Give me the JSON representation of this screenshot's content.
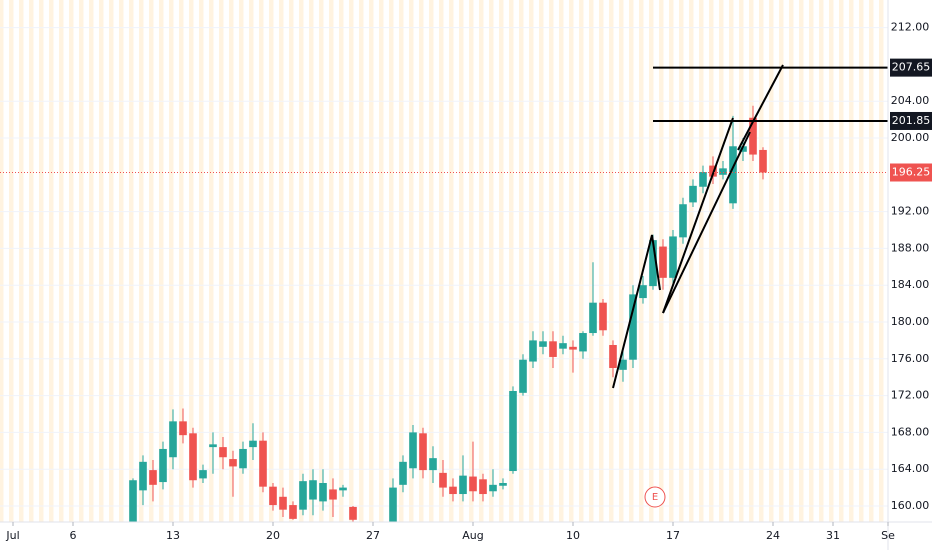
{
  "chart_data": {
    "type": "candlestick",
    "up_color": "#26a69a",
    "down_color": "#ef5350",
    "xlim": [
      -13.3,
      75.5
    ],
    "ylim": [
      158.26,
      215
    ],
    "xticks": [
      {
        "value": -12,
        "label": "Jul"
      },
      {
        "value": -6,
        "label": "6"
      },
      {
        "value": 4,
        "label": "13"
      },
      {
        "value": 14,
        "label": "20"
      },
      {
        "value": 24,
        "label": "27"
      },
      {
        "value": 34,
        "label": "Aug"
      },
      {
        "value": 44,
        "label": "10"
      },
      {
        "value": 54,
        "label": "17"
      },
      {
        "value": 64,
        "label": "24"
      },
      {
        "value": 70,
        "label": "31"
      },
      {
        "value": 75.5,
        "label": "Se"
      }
    ],
    "yticks": [
      {
        "value": 160,
        "label": "160.00"
      },
      {
        "value": 164,
        "label": "164.00"
      },
      {
        "value": 168,
        "label": "168.00"
      },
      {
        "value": 172,
        "label": "172.00"
      },
      {
        "value": 176,
        "label": "176.00"
      },
      {
        "value": 180,
        "label": "180.00"
      },
      {
        "value": 184,
        "label": "184.00"
      },
      {
        "value": 188,
        "label": "188.00"
      },
      {
        "value": 192,
        "label": "192.00"
      },
      {
        "value": 200,
        "label": "200.00"
      },
      {
        "value": 204,
        "label": "204.00"
      },
      {
        "value": 212,
        "label": "212.00"
      }
    ],
    "x": [
      0,
      1,
      2,
      3,
      4,
      5,
      6,
      7,
      8,
      9,
      10,
      11,
      12,
      13,
      14,
      15,
      16,
      17,
      18,
      19,
      20,
      21,
      22,
      26,
      27,
      28,
      29,
      30,
      31,
      32,
      33,
      34,
      35,
      36,
      37,
      38,
      39,
      40,
      41,
      42,
      43,
      44,
      45,
      46,
      47,
      48,
      49,
      50,
      51,
      52,
      53,
      54,
      55,
      56,
      57,
      58,
      59,
      60,
      61,
      62,
      63
    ],
    "open": [
      158.0,
      161.7,
      163.9,
      162.6,
      165.3,
      169.2,
      167.9,
      163.0,
      166.4,
      166.4,
      165.1,
      164.1,
      166.4,
      167.1,
      162.1,
      161.0,
      160.1,
      159.6,
      160.7,
      160.5,
      161.8,
      161.7,
      159.9,
      158.3,
      162.3,
      164.1,
      167.9,
      163.9,
      163.6,
      162.1,
      161.3,
      163.2,
      162.9,
      161.6,
      162.2,
      163.8,
      172.3,
      175.7,
      177.3,
      177.9,
      177.1,
      177.3,
      176.8,
      178.8,
      182.1,
      177.5,
      174.8,
      175.9,
      182.6,
      183.9,
      188.2,
      184.8,
      189.2,
      193.0,
      194.7,
      197.0,
      196.0,
      192.9,
      198.5,
      202.2,
      198.7
    ],
    "high": [
      163.0,
      165.5,
      165.0,
      167.0,
      170.5,
      170.6,
      168.5,
      164.5,
      168.0,
      167.5,
      166.0,
      167.0,
      169.0,
      168.0,
      162.5,
      162.0,
      160.5,
      163.5,
      164.0,
      164.0,
      163.0,
      162.3,
      160.0,
      163.0,
      165.5,
      168.8,
      168.5,
      166.5,
      165.0,
      163.0,
      165.5,
      167.0,
      163.5,
      164.0,
      163.0,
      173.0,
      176.5,
      179.0,
      179.0,
      179.0,
      178.5,
      178.0,
      179.0,
      186.5,
      182.5,
      178.0,
      177.0,
      184.0,
      185.0,
      189.5,
      189.0,
      190.0,
      193.5,
      195.5,
      197.0,
      198.0,
      197.5,
      202.4,
      200.0,
      203.5,
      199.0
    ],
    "low": [
      157.0,
      160.1,
      160.5,
      161.8,
      164.0,
      166.8,
      162.0,
      162.5,
      163.5,
      164.0,
      161.0,
      163.5,
      165.0,
      161.5,
      159.5,
      158.8,
      158.5,
      159.0,
      159.0,
      159.5,
      158.8,
      161.0,
      158.0,
      157.0,
      161.5,
      163.0,
      163.0,
      162.5,
      161.0,
      160.5,
      160.5,
      160.5,
      160.5,
      161.0,
      161.8,
      163.5,
      172.0,
      175.0,
      176.5,
      175.0,
      176.5,
      174.5,
      176.0,
      178.5,
      178.5,
      174.0,
      173.5,
      175.0,
      182.0,
      183.5,
      183.5,
      184.0,
      188.5,
      192.5,
      194.0,
      195.0,
      195.5,
      192.3,
      197.5,
      197.5,
      195.5
    ],
    "close": [
      162.8,
      164.8,
      162.3,
      166.2,
      169.2,
      167.7,
      162.8,
      163.9,
      166.7,
      165.3,
      164.3,
      166.2,
      167.1,
      162.1,
      160.1,
      159.6,
      158.6,
      162.7,
      162.8,
      162.5,
      160.7,
      162.0,
      158.5,
      162.0,
      164.8,
      168.0,
      163.9,
      165.2,
      162.0,
      161.3,
      163.3,
      161.6,
      161.3,
      162.3,
      162.5,
      172.5,
      175.9,
      178.0,
      177.9,
      176.2,
      177.7,
      177.0,
      178.8,
      182.1,
      179.1,
      175.0,
      175.9,
      183.0,
      184.0,
      188.9,
      184.8,
      189.3,
      192.8,
      194.8,
      196.3,
      195.8,
      196.7,
      199.1,
      199.1,
      198.2,
      196.25
    ],
    "price_lines": [
      {
        "value": 207.65,
        "label": "207.65"
      },
      {
        "value": 201.85,
        "label": "201.85"
      }
    ],
    "last_price": {
      "value": 196.25,
      "label": "196.25"
    },
    "earnings_marker": "E"
  }
}
